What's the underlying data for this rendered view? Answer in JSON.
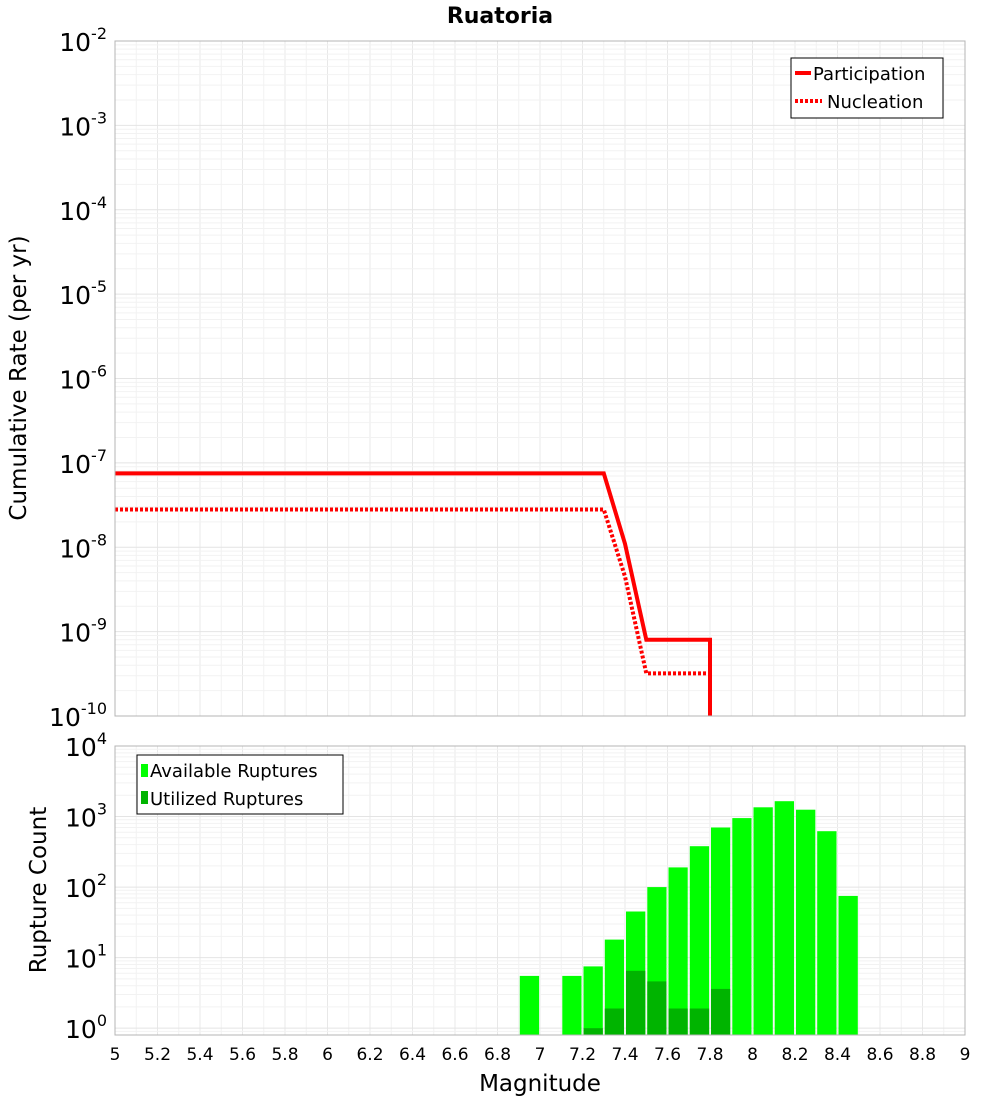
{
  "chart_data": [
    {
      "type": "line",
      "title": "Ruatoria",
      "xlabel": "",
      "ylabel": "Cumulative Rate (per yr)",
      "xlim": [
        5,
        9
      ],
      "ylim": [
        1e-10,
        0.01
      ],
      "y_scale": "log",
      "y_ticks": [
        {
          "base": "10",
          "exp": "-2"
        },
        {
          "base": "10",
          "exp": "-3"
        },
        {
          "base": "10",
          "exp": "-4"
        },
        {
          "base": "10",
          "exp": "-5"
        },
        {
          "base": "10",
          "exp": "-6"
        },
        {
          "base": "10",
          "exp": "-7"
        },
        {
          "base": "10",
          "exp": "-8"
        },
        {
          "base": "10",
          "exp": "-9"
        },
        {
          "base": "10",
          "exp": "-10"
        }
      ],
      "grid": true,
      "legend_position": "top-right",
      "series": [
        {
          "name": "Participation",
          "style": "solid",
          "color": "#ff0000",
          "points": [
            [
              5.0,
              7.5e-08
            ],
            [
              7.3,
              7.5e-08
            ],
            [
              7.4,
              1.1e-08
            ],
            [
              7.5,
              8e-10
            ],
            [
              7.8,
              8e-10
            ],
            [
              7.8,
              1e-10
            ]
          ]
        },
        {
          "name": "Nucleation",
          "style": "dotted",
          "color": "#ff0000",
          "points": [
            [
              5.0,
              2.8e-08
            ],
            [
              7.3,
              2.8e-08
            ],
            [
              7.4,
              4.5e-09
            ],
            [
              7.5,
              3.2e-10
            ],
            [
              7.8,
              3.2e-10
            ],
            [
              7.8,
              1e-10
            ]
          ]
        }
      ]
    },
    {
      "type": "bar",
      "title": "",
      "xlabel": "Magnitude",
      "ylabel": "Rupture Count",
      "xlim": [
        5,
        9
      ],
      "ylim": [
        0.8,
        10000
      ],
      "y_scale": "log",
      "x_ticks": [
        "5",
        "5.2",
        "5.4",
        "5.6",
        "5.8",
        "6",
        "6.2",
        "6.4",
        "6.6",
        "6.8",
        "7",
        "7.2",
        "7.4",
        "7.6",
        "7.8",
        "8",
        "8.2",
        "8.4",
        "8.6",
        "8.8",
        "9"
      ],
      "y_ticks": [
        {
          "base": "10",
          "exp": "4"
        },
        {
          "base": "10",
          "exp": "3"
        },
        {
          "base": "10",
          "exp": "2"
        },
        {
          "base": "10",
          "exp": "1"
        },
        {
          "base": "10",
          "exp": "0"
        }
      ],
      "grid": true,
      "legend_position": "top-left",
      "bin_width": 0.1,
      "series": [
        {
          "name": "Available Ruptures",
          "color": "#00ff00",
          "x": [
            6.95,
            7.15,
            7.25,
            7.35,
            7.45,
            7.55,
            7.65,
            7.75,
            7.85,
            7.95,
            8.05,
            8.15,
            8.25,
            8.35,
            8.45
          ],
          "values": [
            5.5,
            5.5,
            7.5,
            18,
            45,
            100,
            190,
            380,
            700,
            950,
            1350,
            1650,
            1250,
            620,
            75
          ]
        },
        {
          "name": "Utilized Ruptures",
          "color": "#00b400",
          "x": [
            7.25,
            7.35,
            7.45,
            7.55,
            7.65,
            7.75,
            7.85
          ],
          "values": [
            1.0,
            1.9,
            6.5,
            4.6,
            1.9,
            1.9,
            3.6
          ]
        }
      ]
    }
  ]
}
